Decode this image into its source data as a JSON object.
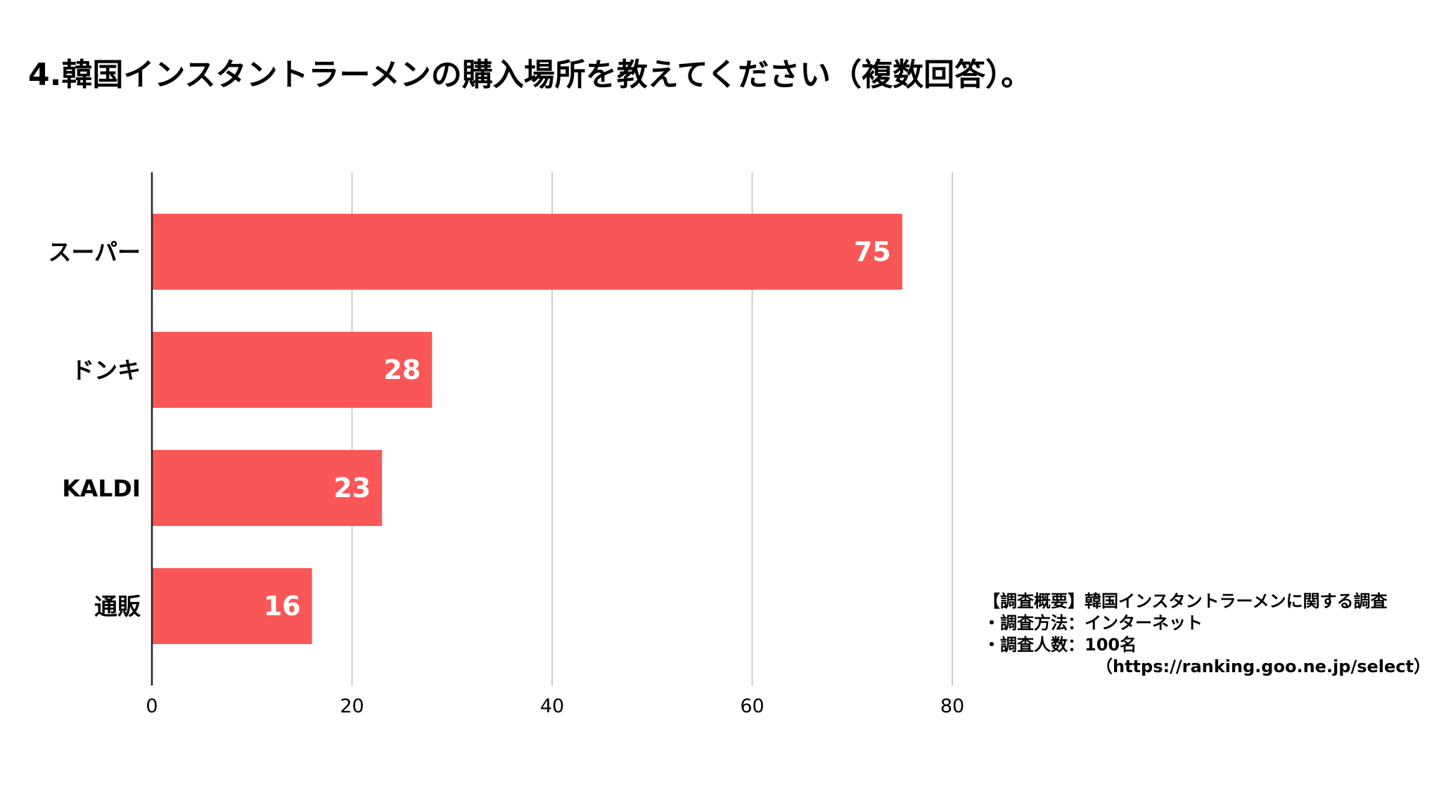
{
  "title": "4.韓国インスタントラーメンの購入場所を教えてください（複数回答）。",
  "chart_data": {
    "type": "bar",
    "orientation": "horizontal",
    "categories": [
      "スーパー",
      "ドンキ",
      "KALDI",
      "通販"
    ],
    "values": [
      75,
      28,
      23,
      16
    ],
    "xlim": [
      0,
      80
    ],
    "xticks": [
      0,
      20,
      40,
      60,
      80
    ],
    "grid": true,
    "bar_color": "#f95757",
    "data_labels": true
  },
  "notes": {
    "line1": "【調査概要】韓国インスタントラーメンに関する調査",
    "line2": "・調査方法：インターネット",
    "line3": "・調査人数：100名",
    "source": "（https://ranking.goo.ne.jp/select）"
  }
}
